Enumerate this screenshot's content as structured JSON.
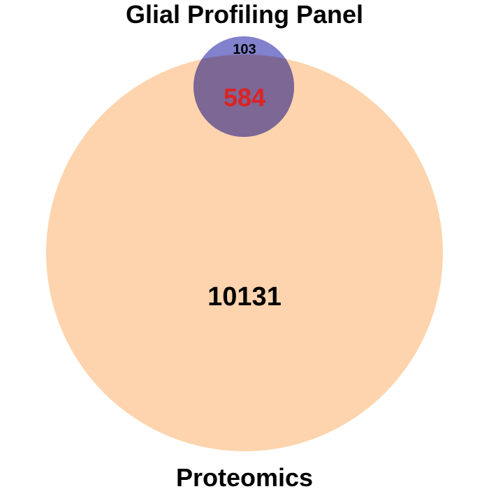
{
  "venn": {
    "sets": [
      {
        "name": "Glial Profiling Panel",
        "color": "#6b6bc4",
        "opacity": 0.85
      },
      {
        "name": "Proteomics",
        "color": "#fdd4ad",
        "opacity": 1.0
      }
    ],
    "regions": {
      "glial_only": "103",
      "overlap": "584",
      "proteomics_only": "10131"
    },
    "overlap_color": "#dd2222",
    "overlap_fill": "#7d6795"
  }
}
